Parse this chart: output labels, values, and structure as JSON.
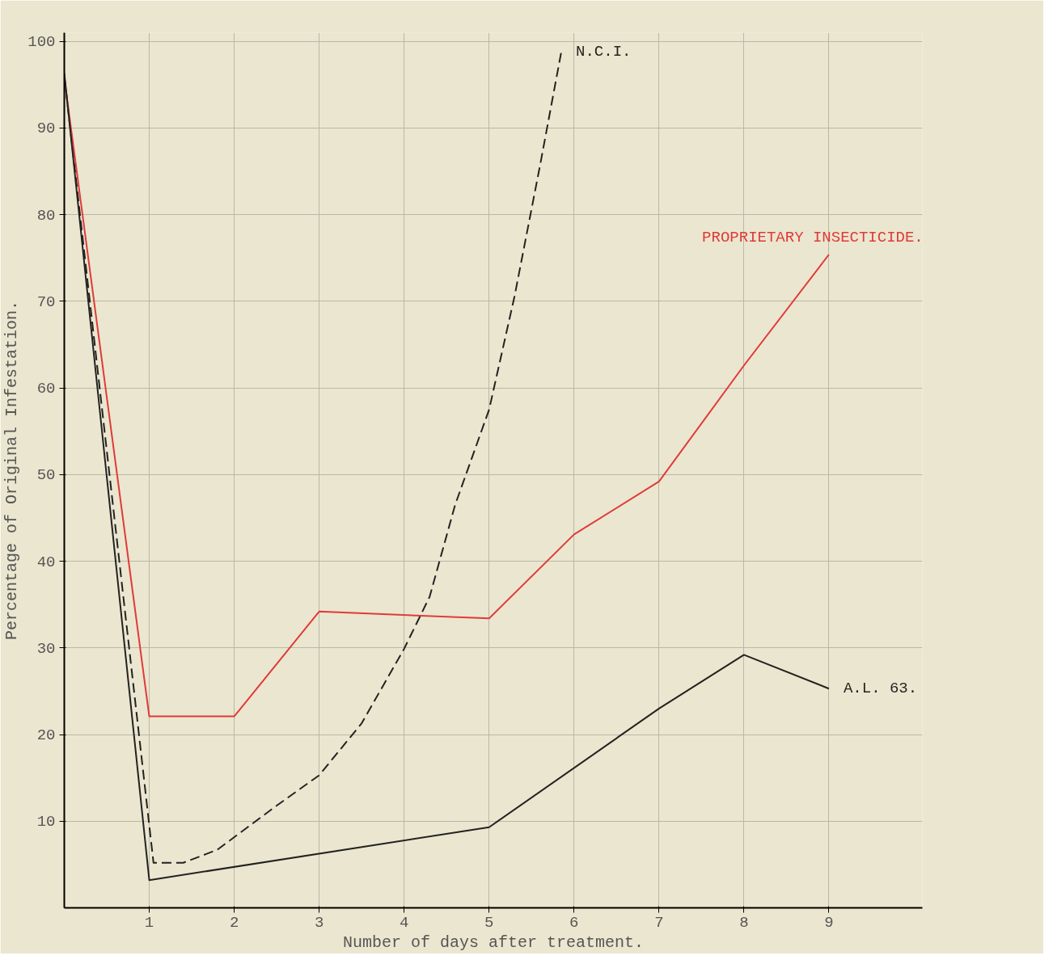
{
  "chart_data": {
    "type": "line",
    "xlabel": "Number of days after treatment.",
    "ylabel": "Percentage of Original Infestation.",
    "xlim": [
      0,
      10.1
    ],
    "ylim": [
      0,
      101
    ],
    "xticks": [
      1,
      2,
      3,
      4,
      5,
      6,
      7,
      8,
      9
    ],
    "yticks": [
      10,
      20,
      30,
      40,
      50,
      60,
      70,
      80,
      90,
      100
    ],
    "grid": true,
    "marker": "none",
    "series": [
      {
        "name": "N.C.I.",
        "color": "#222222",
        "line_style": "dashed",
        "x": [
          0,
          1.05,
          1.4,
          1.8,
          2.5,
          3,
          3.5,
          4,
          4.3,
          4.6,
          5,
          5.3,
          5.6,
          5.85
        ],
        "values": [
          96,
          5.2,
          5.2,
          6.7,
          11.8,
          15.3,
          21.3,
          29.9,
          35.9,
          46.5,
          57.5,
          70.6,
          85.7,
          98.8
        ]
      },
      {
        "name": "PROPRIETARY INSECTICIDE.",
        "color": "#e03a3a",
        "line_style": "solid",
        "x": [
          0,
          1,
          2,
          3,
          5,
          6,
          7,
          8,
          9
        ],
        "values": [
          95.8,
          22.1,
          22.1,
          34.2,
          33.4,
          43.1,
          49.2,
          62.6,
          75.4
        ]
      },
      {
        "name": "A.L. 63.",
        "color": "#222222",
        "line_style": "solid",
        "x": [
          0,
          1,
          5,
          7,
          8,
          9
        ],
        "values": [
          96.3,
          3.2,
          9.3,
          23,
          29.2,
          25.3
        ]
      }
    ]
  }
}
